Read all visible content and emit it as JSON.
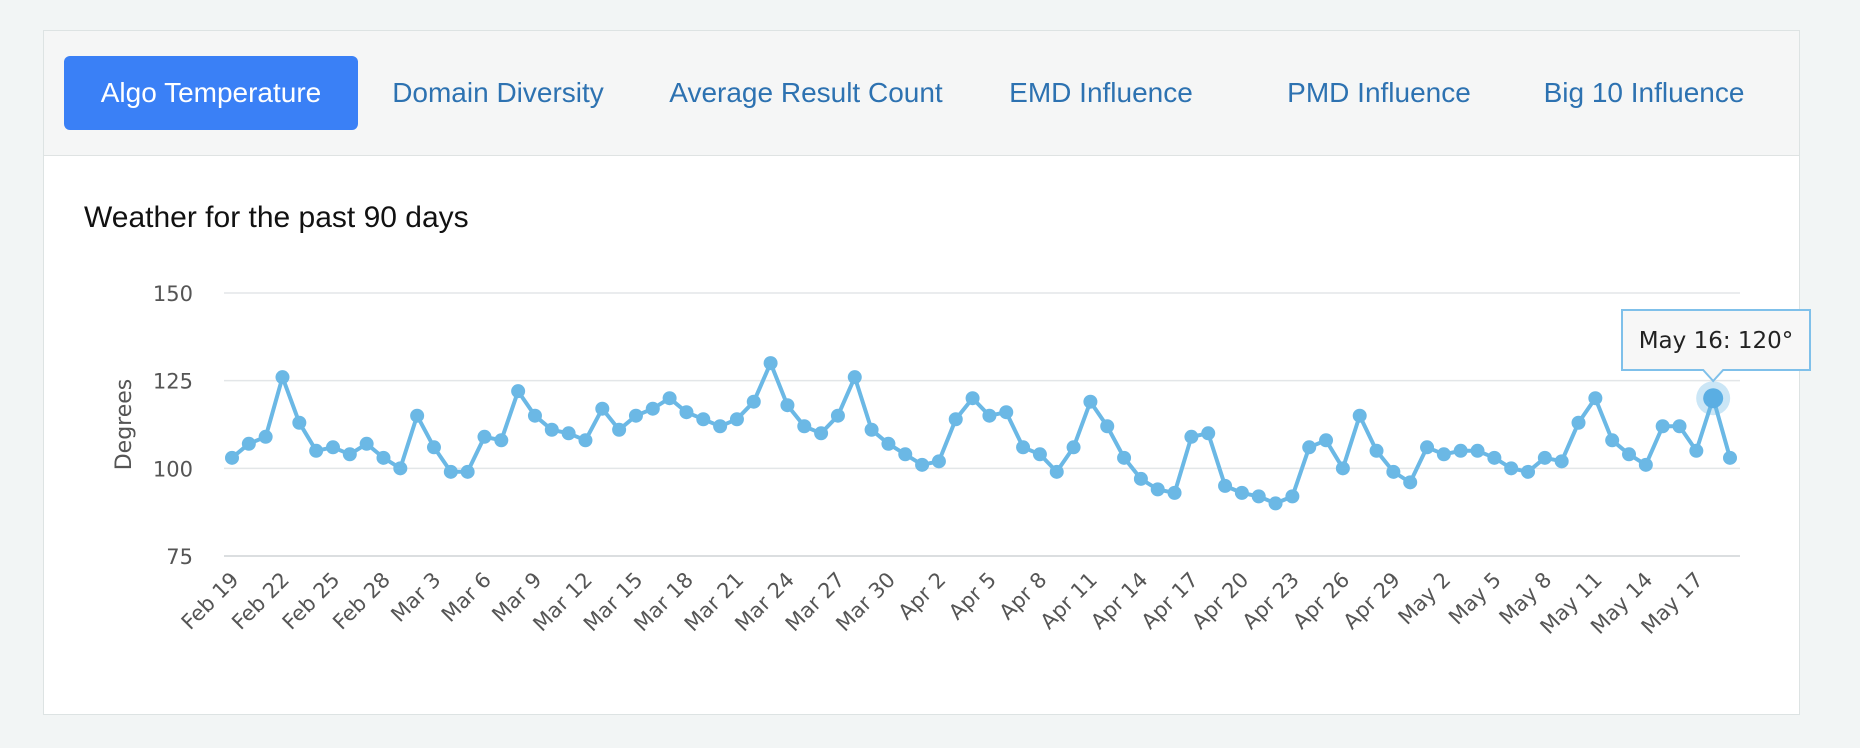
{
  "tabs": [
    {
      "label": "Algo Temperature",
      "active": true
    },
    {
      "label": "Domain Diversity",
      "active": false
    },
    {
      "label": "Average Result Count",
      "active": false
    },
    {
      "label": "EMD Influence",
      "active": false
    },
    {
      "label": "PMD Influence",
      "active": false
    },
    {
      "label": "Big 10 Influence",
      "active": false
    }
  ],
  "colors": {
    "accent": "#3a80f6",
    "series": "#6bb8e5",
    "grid": "#e3e6e8"
  },
  "chart_data": {
    "type": "line",
    "title": "Weather for the past 90 days",
    "xlabel": "",
    "ylabel": "Degrees",
    "ylim": [
      75,
      150
    ],
    "yticks": [
      75,
      100,
      125,
      150
    ],
    "grid": true,
    "x_tick_labels": [
      "Feb 19",
      "Feb 22",
      "Feb 25",
      "Feb 28",
      "Mar 3",
      "Mar 6",
      "Mar 9",
      "Mar 12",
      "Mar 15",
      "Mar 18",
      "Mar 21",
      "Mar 24",
      "Mar 27",
      "Mar 30",
      "Apr 2",
      "Apr 5",
      "Apr 8",
      "Apr 11",
      "Apr 14",
      "Apr 17",
      "Apr 20",
      "Apr 23",
      "Apr 26",
      "Apr 29",
      "May 2",
      "May 5",
      "May 8",
      "May 11",
      "May 14",
      "May 17"
    ],
    "series": [
      {
        "name": "Algo Temperature",
        "values": [
          103,
          107,
          109,
          126,
          113,
          105,
          106,
          104,
          107,
          103,
          100,
          115,
          106,
          99,
          99,
          109,
          108,
          122,
          115,
          111,
          110,
          108,
          117,
          111,
          115,
          117,
          120,
          116,
          114,
          112,
          114,
          119,
          130,
          118,
          112,
          110,
          115,
          126,
          111,
          107,
          104,
          101,
          102,
          114,
          120,
          115,
          116,
          106,
          104,
          99,
          106,
          119,
          112,
          103,
          97,
          94,
          93,
          109,
          110,
          95,
          93,
          92,
          90,
          92,
          106,
          108,
          100,
          115,
          105,
          99,
          96,
          106,
          104,
          105,
          105,
          103,
          100,
          99,
          103,
          102,
          113,
          120,
          108,
          104,
          101,
          112,
          112,
          105,
          120,
          103
        ]
      }
    ],
    "tooltip": {
      "text": "May 16: 120°",
      "index": 88
    }
  }
}
